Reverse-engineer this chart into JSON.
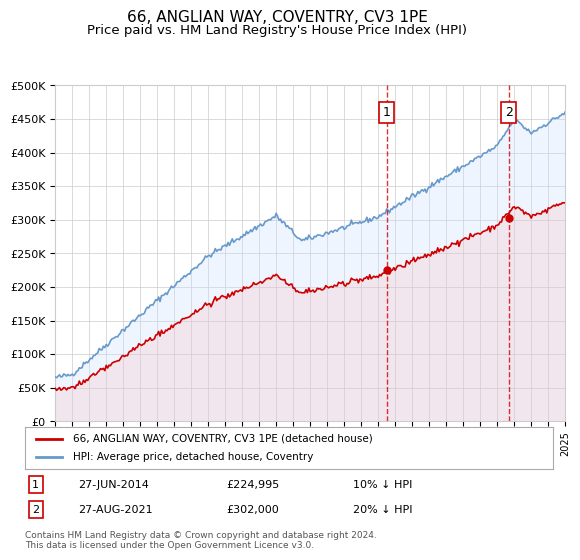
{
  "title": "66, ANGLIAN WAY, COVENTRY, CV3 1PE",
  "subtitle": "Price paid vs. HM Land Registry's House Price Index (HPI)",
  "legend_property": "66, ANGLIAN WAY, COVENTRY, CV3 1PE (detached house)",
  "legend_hpi": "HPI: Average price, detached house, Coventry",
  "annotation1_label": "1",
  "annotation1_date": "27-JUN-2014",
  "annotation1_price": "£224,995",
  "annotation1_hpi": "10% ↓ HPI",
  "annotation2_label": "2",
  "annotation2_date": "27-AUG-2021",
  "annotation2_price": "£302,000",
  "annotation2_hpi": "20% ↓ HPI",
  "footnote": "Contains HM Land Registry data © Crown copyright and database right 2024.\nThis data is licensed under the Open Government Licence v3.0.",
  "sale1_year": 2014.5,
  "sale1_value": 224995,
  "sale2_year": 2021.67,
  "sale2_value": 302000,
  "ylim": [
    0,
    500000
  ],
  "xlim_start": 1995,
  "xlim_end": 2025,
  "background_color": "#ffffff",
  "grid_color": "#cccccc",
  "hpi_color": "#6699cc",
  "hpi_fill_color": "#cce0ff",
  "property_color": "#cc0000",
  "property_fill_color": "#ffcccc",
  "vline_color": "#cc0000",
  "marker_color": "#cc0000"
}
